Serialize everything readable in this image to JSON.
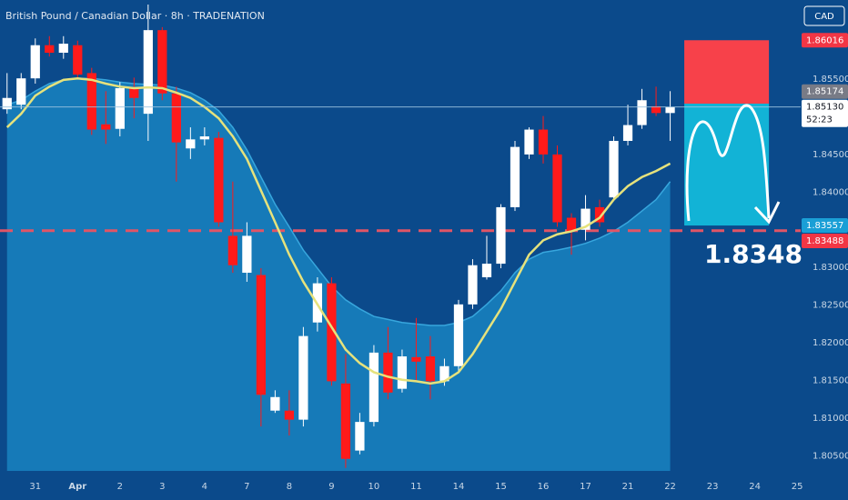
{
  "chart_data": {
    "type": "candlestick",
    "title": "British Pound / Canadian Dollar · 8h · TRADENATION",
    "currency": "CAD",
    "annotation": "1.8348",
    "up_color": "#ffffff",
    "down_color": "#ff1a1a",
    "candles": {
      "open": [
        1.851,
        1.8516,
        1.8551,
        1.8595,
        1.8585,
        1.8595,
        1.8558,
        1.849,
        1.8484,
        1.8538,
        1.8504,
        1.8615,
        1.8531,
        1.8458,
        1.847,
        1.8472,
        1.8342,
        1.8293,
        1.829,
        1.811,
        1.811,
        1.8098,
        1.8227,
        1.8279,
        1.8146,
        1.8057,
        1.8095,
        1.8187,
        1.8139,
        1.8181,
        1.8182,
        1.8149,
        1.8169,
        1.8251,
        1.8287,
        1.8305,
        1.838,
        1.845,
        1.8483,
        1.845,
        1.8366,
        1.835,
        1.838,
        1.8393,
        1.8468,
        1.8489,
        1.8514,
        1.8505
      ],
      "high": [
        1.8558,
        1.8558,
        1.8604,
        1.8607,
        1.8607,
        1.8601,
        1.8565,
        1.8534,
        1.8546,
        1.8552,
        1.8649,
        1.8619,
        1.854,
        1.8486,
        1.8486,
        1.848,
        1.8414,
        1.836,
        1.8299,
        1.8137,
        1.8137,
        1.8221,
        1.8287,
        1.8287,
        1.8185,
        1.8107,
        1.8197,
        1.8221,
        1.8191,
        1.8233,
        1.8209,
        1.8179,
        1.8257,
        1.8311,
        1.8342,
        1.8384,
        1.8468,
        1.8486,
        1.8501,
        1.8462,
        1.8372,
        1.8396,
        1.839,
        1.8474,
        1.8516,
        1.8537,
        1.854,
        1.8534
      ],
      "low": [
        1.8504,
        1.851,
        1.8544,
        1.858,
        1.8577,
        1.8552,
        1.8476,
        1.8464,
        1.8474,
        1.8498,
        1.8468,
        1.8522,
        1.8414,
        1.8444,
        1.8462,
        1.8354,
        1.8293,
        1.8281,
        1.8089,
        1.8107,
        1.8077,
        1.8089,
        1.8215,
        1.8143,
        1.8034,
        1.8052,
        1.8089,
        1.8125,
        1.8134,
        1.8149,
        1.8125,
        1.8143,
        1.8161,
        1.8245,
        1.8284,
        1.8299,
        1.8375,
        1.8444,
        1.8438,
        1.8354,
        1.8317,
        1.8336,
        1.8354,
        1.839,
        1.8462,
        1.8484,
        1.8501,
        1.8468
      ],
      "close": [
        1.8525,
        1.8551,
        1.8595,
        1.8585,
        1.8597,
        1.8556,
        1.8483,
        1.8483,
        1.8538,
        1.8525,
        1.8615,
        1.8531,
        1.8466,
        1.847,
        1.8474,
        1.836,
        1.8303,
        1.8342,
        1.8131,
        1.8128,
        1.8098,
        1.8209,
        1.8279,
        1.8149,
        1.8046,
        1.8095,
        1.8187,
        1.8134,
        1.8182,
        1.8175,
        1.8149,
        1.8169,
        1.8251,
        1.8303,
        1.8305,
        1.838,
        1.846,
        1.8483,
        1.845,
        1.836,
        1.8348,
        1.8378,
        1.836,
        1.8468,
        1.8489,
        1.8522,
        1.8505,
        1.8513
      ]
    },
    "ma": {
      "color": "#e6e27c",
      "values": [
        1.8486,
        1.8504,
        1.8528,
        1.854,
        1.8549,
        1.8551,
        1.8549,
        1.8544,
        1.854,
        1.8538,
        1.8539,
        1.8538,
        1.8532,
        1.8525,
        1.8513,
        1.8498,
        1.8474,
        1.8444,
        1.8402,
        1.836,
        1.8317,
        1.8281,
        1.8251,
        1.8221,
        1.8191,
        1.8173,
        1.8161,
        1.8155,
        1.8151,
        1.8149,
        1.8146,
        1.8149,
        1.8161,
        1.8185,
        1.8215,
        1.8245,
        1.8281,
        1.8317,
        1.8336,
        1.8344,
        1.8348,
        1.8354,
        1.8366,
        1.839,
        1.8408,
        1.842,
        1.8428,
        1.8438
      ]
    },
    "band": {
      "color": "#1780bd",
      "values": [
        1.8516,
        1.8522,
        1.8534,
        1.8544,
        1.8549,
        1.8551,
        1.8551,
        1.8549,
        1.8546,
        1.8544,
        1.8543,
        1.8542,
        1.8538,
        1.8532,
        1.8522,
        1.8508,
        1.8486,
        1.8456,
        1.842,
        1.8384,
        1.8354,
        1.8323,
        1.8299,
        1.8275,
        1.8257,
        1.8245,
        1.8235,
        1.8231,
        1.8227,
        1.8225,
        1.8223,
        1.8223,
        1.8227,
        1.8235,
        1.8251,
        1.8269,
        1.8293,
        1.8311,
        1.832,
        1.8323,
        1.8327,
        1.8332,
        1.8339,
        1.8348,
        1.836,
        1.8375,
        1.839,
        1.8414
      ]
    },
    "position": {
      "start": 48,
      "end": 54,
      "stop": 1.86016,
      "entry": 1.85174,
      "target": 1.83557,
      "stop_color": "#f7414a",
      "target_color": "#12b3d6"
    },
    "level": {
      "value": 1.83488,
      "color": "#e05566"
    },
    "badges": [
      {
        "value": 1.86016,
        "label": "1.86016",
        "bg": "#f23645",
        "fg": "#ffffff"
      },
      {
        "value": 1.85174,
        "label": "1.85174",
        "bg": "#787b86",
        "fg": "#ffffff"
      },
      {
        "value": 1.8513,
        "label": "1.85130",
        "countdown": "52:23",
        "bg": "#ffffff",
        "fg": "#131722",
        "current": true
      },
      {
        "value": 1.83557,
        "label": "1.83557",
        "bg": "#1a9fd6",
        "fg": "#ffffff"
      },
      {
        "value": 1.83488,
        "label": "1.83488",
        "bg": "#f23645",
        "fg": "#ffffff"
      }
    ],
    "xlim": [
      -0.5,
      56.25
    ],
    "ylim": [
      1.803,
      1.8655
    ],
    "yticks": [
      {
        "value": 1.855,
        "label": "1.85500"
      },
      {
        "value": 1.845,
        "label": "1.84500"
      },
      {
        "value": 1.84,
        "label": "1.84000"
      },
      {
        "value": 1.83,
        "label": "1.83000"
      },
      {
        "value": 1.825,
        "label": "1.82500"
      },
      {
        "value": 1.82,
        "label": "1.82000"
      },
      {
        "value": 1.815,
        "label": "1.81500"
      },
      {
        "value": 1.81,
        "label": "1.81000"
      },
      {
        "value": 1.805,
        "label": "1.80500"
      }
    ],
    "xticks": [
      {
        "value": 2,
        "label": "31"
      },
      {
        "value": 5,
        "label": "Apr"
      },
      {
        "value": 8,
        "label": "2"
      },
      {
        "value": 11,
        "label": "3"
      },
      {
        "value": 14,
        "label": "4"
      },
      {
        "value": 17,
        "label": "7"
      },
      {
        "value": 20,
        "label": "8"
      },
      {
        "value": 23,
        "label": "9"
      },
      {
        "value": 26,
        "label": "10"
      },
      {
        "value": 29,
        "label": "11"
      },
      {
        "value": 32,
        "label": "14"
      },
      {
        "value": 35,
        "label": "15"
      },
      {
        "value": 38,
        "label": "16"
      },
      {
        "value": 41,
        "label": "17"
      },
      {
        "value": 44,
        "label": "21"
      },
      {
        "value": 47,
        "label": "22"
      },
      {
        "value": 50,
        "label": "23"
      },
      {
        "value": 53,
        "label": "24"
      },
      {
        "value": 56,
        "label": "25"
      }
    ],
    "grid": false
  }
}
